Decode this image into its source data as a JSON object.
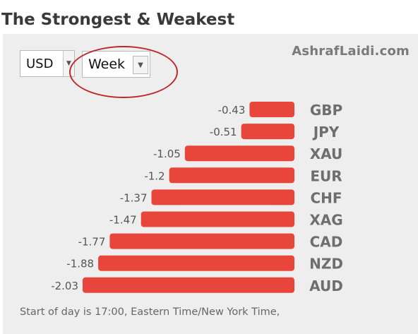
{
  "page_title": "The Strongest & Weakest",
  "brand": "AshrafLaidi.com",
  "controls": {
    "currency_select": {
      "value": "USD",
      "arrow_icon": "chevron-down-icon"
    },
    "period_select": {
      "value": "Week",
      "arrow_icon": "chevron-down-icon"
    },
    "highlight_color": "#c0272d"
  },
  "chart_data": {
    "type": "bar",
    "orientation": "horizontal",
    "categories": [
      "GBP",
      "JPY",
      "XAU",
      "EUR",
      "CHF",
      "XAG",
      "CAD",
      "NZD",
      "AUD"
    ],
    "values": [
      -0.43,
      -0.51,
      -1.05,
      -1.2,
      -1.37,
      -1.47,
      -1.77,
      -1.88,
      -2.03
    ],
    "value_labels": [
      "-0.43",
      "-0.51",
      "-1.05",
      "-1.2",
      "-1.37",
      "-1.47",
      "-1.77",
      "-1.88",
      "-2.03"
    ],
    "bar_color": "#e8463b",
    "title": "",
    "xlabel": "",
    "ylabel": ""
  },
  "footer_note": "Start of day is 17:00, Eastern Time/New York Time,"
}
